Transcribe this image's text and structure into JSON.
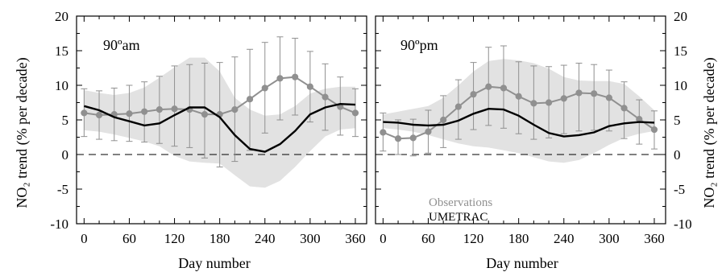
{
  "chart_data": [
    {
      "type": "line",
      "panel_label": "90ºam",
      "xlabel": "Day number",
      "ylabel": "NO₂ trend (% per decade)",
      "xlim": [
        -10,
        375
      ],
      "ylim": [
        -10,
        20
      ],
      "xticks": [
        0,
        60,
        120,
        180,
        240,
        300,
        360
      ],
      "yticks": [
        -10,
        -5,
        0,
        5,
        10,
        15,
        20
      ],
      "reference_line": 0,
      "observations": {
        "name": "Observations",
        "color": "#909090",
        "x": [
          0,
          20,
          40,
          60,
          80,
          100,
          120,
          140,
          160,
          180,
          200,
          220,
          240,
          260,
          280,
          300,
          320,
          340,
          360
        ],
        "y": [
          6.0,
          5.7,
          5.8,
          5.9,
          6.2,
          6.5,
          6.6,
          6.5,
          5.8,
          5.8,
          6.5,
          8.0,
          9.6,
          11.0,
          11.2,
          9.8,
          8.3,
          6.9,
          6.0
        ],
        "err_low": [
          2.6,
          2.2,
          2.0,
          1.9,
          1.8,
          1.6,
          1.2,
          1.0,
          -0.5,
          -1.8,
          -1.0,
          0.6,
          3.1,
          5.0,
          5.7,
          4.7,
          3.5,
          2.8,
          2.6
        ],
        "err_high": [
          9.5,
          9.2,
          9.6,
          10.0,
          10.5,
          11.3,
          12.8,
          13.0,
          13.2,
          13.3,
          14.1,
          15.2,
          16.2,
          17.0,
          16.8,
          14.9,
          13.1,
          11.2,
          9.5
        ]
      },
      "model": {
        "name": "UMETRAC",
        "color": "#000000",
        "x": [
          0,
          20,
          40,
          60,
          80,
          100,
          120,
          140,
          160,
          180,
          200,
          220,
          240,
          260,
          280,
          300,
          320,
          340,
          360
        ],
        "y": [
          7.0,
          6.4,
          5.4,
          4.8,
          4.2,
          4.5,
          5.7,
          6.8,
          6.8,
          5.4,
          2.8,
          0.8,
          0.4,
          1.5,
          3.4,
          5.8,
          6.8,
          7.3,
          7.2
        ]
      },
      "model_range": {
        "x": [
          0,
          20,
          40,
          60,
          80,
          100,
          120,
          140,
          160,
          180,
          200,
          220,
          240,
          260,
          280,
          300,
          320,
          340,
          360
        ],
        "low": [
          3.5,
          3.3,
          2.9,
          2.4,
          1.9,
          1.2,
          -0.2,
          -1.0,
          -1.2,
          -1.3,
          -3.0,
          -4.6,
          -4.8,
          -3.8,
          -1.8,
          0.5,
          2.6,
          3.6,
          3.8
        ],
        "high": [
          9.3,
          8.9,
          8.6,
          8.9,
          9.7,
          11.1,
          12.6,
          14.0,
          14.0,
          12.0,
          8.2,
          6.5,
          5.6,
          5.8,
          7.0,
          8.8,
          9.5,
          9.8,
          9.8
        ]
      }
    },
    {
      "type": "line",
      "panel_label": "90ºpm",
      "xlabel": "Day number",
      "ylabel": "NO₂ trend (% per decade)",
      "xlim": [
        -10,
        375
      ],
      "ylim": [
        -10,
        20
      ],
      "xticks": [
        0,
        60,
        120,
        180,
        240,
        300,
        360
      ],
      "yticks": [
        -10,
        -5,
        0,
        5,
        10,
        15,
        20
      ],
      "reference_line": 0,
      "observations": {
        "name": "Observations",
        "color": "#909090",
        "x": [
          0,
          20,
          40,
          60,
          80,
          100,
          120,
          140,
          160,
          180,
          200,
          220,
          240,
          260,
          280,
          300,
          320,
          340,
          360
        ],
        "y": [
          3.2,
          2.3,
          2.4,
          3.3,
          5.0,
          6.9,
          8.7,
          9.8,
          9.6,
          8.4,
          7.4,
          7.5,
          8.1,
          8.9,
          8.8,
          8.2,
          6.7,
          5.1,
          3.6
        ],
        "err_low": [
          0.5,
          0.0,
          -0.2,
          0.2,
          1.0,
          2.2,
          3.6,
          4.2,
          3.8,
          3.0,
          2.2,
          2.4,
          3.0,
          3.4,
          3.5,
          3.4,
          2.3,
          1.5,
          0.8
        ],
        "err_high": [
          6.0,
          5.0,
          5.1,
          6.4,
          8.5,
          10.8,
          13.3,
          15.5,
          15.7,
          13.4,
          12.8,
          12.7,
          12.9,
          13.2,
          13.0,
          12.2,
          10.5,
          7.9,
          6.3
        ]
      },
      "model": {
        "name": "UMETRAC",
        "color": "#000000",
        "x": [
          0,
          20,
          40,
          60,
          80,
          100,
          120,
          140,
          160,
          180,
          200,
          220,
          240,
          260,
          280,
          300,
          320,
          340,
          360
        ],
        "y": [
          4.7,
          4.6,
          4.3,
          4.2,
          4.3,
          4.9,
          5.9,
          6.6,
          6.5,
          5.6,
          4.3,
          3.1,
          2.6,
          2.8,
          3.2,
          4.1,
          4.5,
          4.7,
          4.6
        ]
      },
      "model_range": {
        "x": [
          0,
          20,
          40,
          60,
          80,
          100,
          120,
          140,
          160,
          180,
          200,
          220,
          240,
          260,
          280,
          300,
          320,
          340,
          360
        ],
        "low": [
          3.8,
          3.6,
          3.3,
          2.8,
          2.2,
          1.6,
          1.2,
          1.0,
          0.6,
          0.2,
          -0.4,
          -1.0,
          -1.2,
          -0.8,
          0.2,
          1.4,
          2.4,
          3.0,
          3.4
        ],
        "high": [
          5.8,
          6.2,
          6.6,
          7.0,
          8.2,
          10.0,
          12.0,
          13.5,
          13.8,
          13.6,
          13.2,
          12.4,
          11.2,
          10.7,
          10.6,
          10.6,
          10.2,
          8.4,
          6.4
        ]
      }
    }
  ],
  "legend": {
    "observations": "Observations",
    "model": "UMETRAC",
    "observations_color": "#909090",
    "model_color": "#000000",
    "band_color": "#e2e2e2"
  }
}
